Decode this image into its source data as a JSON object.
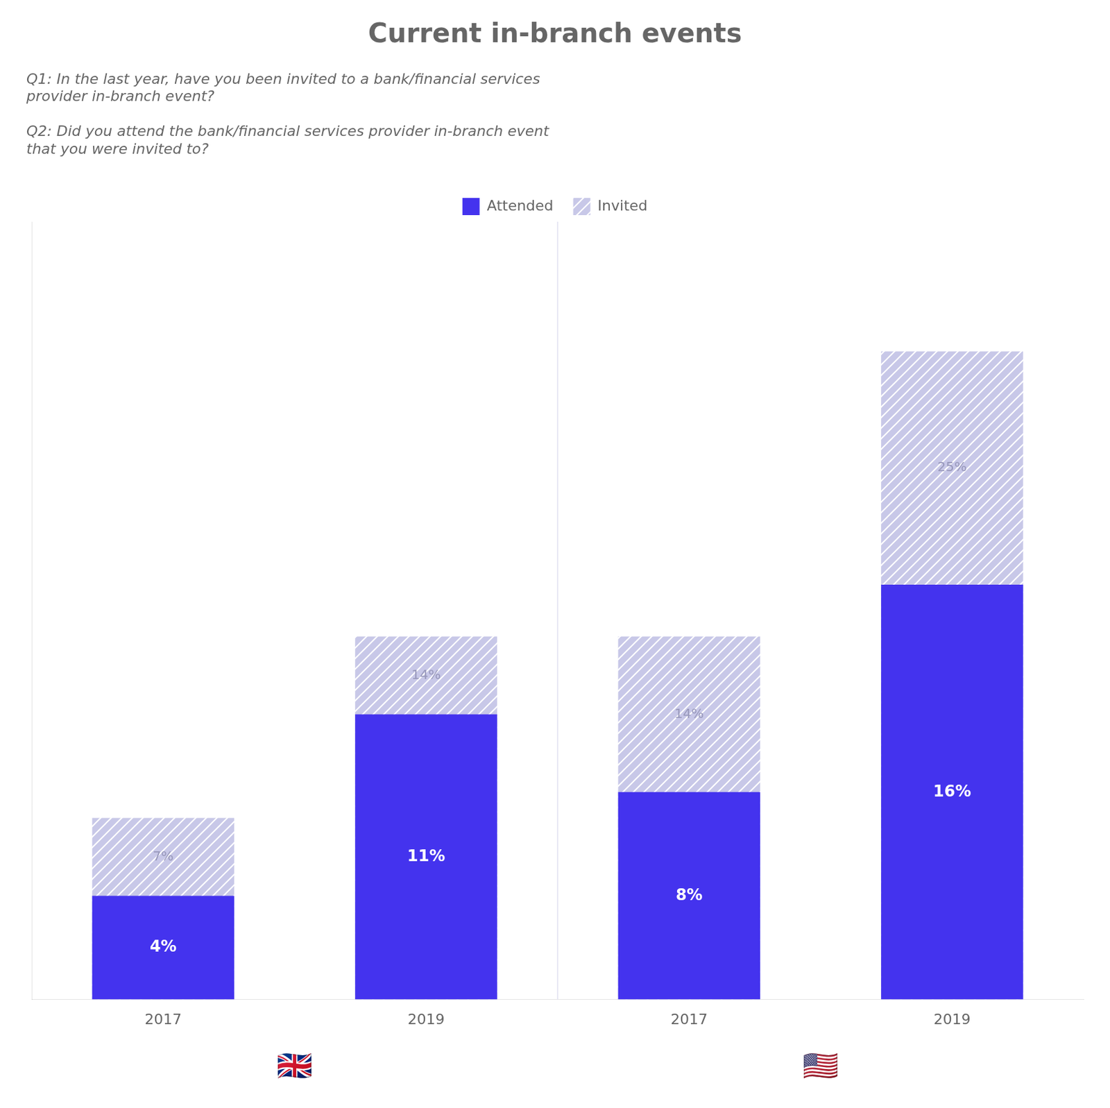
{
  "chart_data": {
    "type": "bar",
    "title": "Current in-branch events",
    "subtitle": [
      "Q1: In the last year, have you been invited to a bank/financial services\nprovider in-branch event?",
      "Q2: Did you attend the bank/financial services provider in-branch event\nthat you were invited to?"
    ],
    "categories": [
      "2017",
      "2019",
      "2017",
      "2019"
    ],
    "series": [
      {
        "name": "Attended",
        "color": "#4433ee",
        "values": [
          4,
          11,
          8,
          16
        ],
        "value_labels": [
          "4%",
          "11%",
          "8%",
          "16%"
        ]
      },
      {
        "name": "Invited",
        "color": "#c8c8e8",
        "values": [
          7,
          14,
          14,
          25
        ],
        "value_labels": [
          "7%",
          "14%",
          "14%",
          "25%"
        ]
      }
    ],
    "annotations": [
      "🇬🇧",
      "🇺🇸"
    ],
    "ylim": [
      0,
      30
    ],
    "yticks": [],
    "grid": false,
    "legend": "top",
    "data_labels": true,
    "tick_labels": "x"
  }
}
